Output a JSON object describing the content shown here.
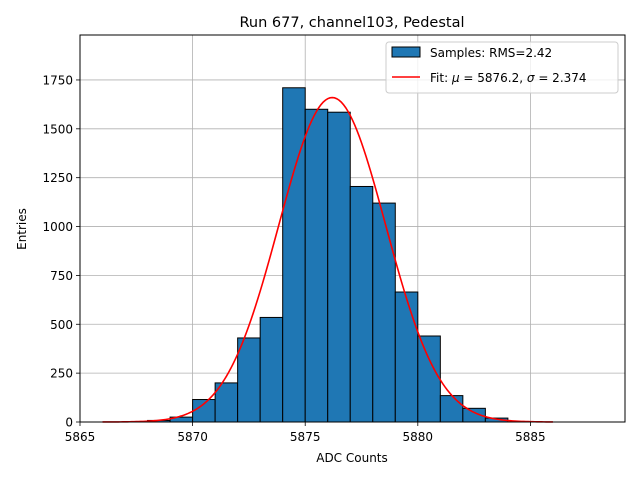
{
  "chart_data": {
    "type": "bar",
    "title": "Run 677, channel103, Pedestal",
    "xlabel": "ADC Counts",
    "ylabel": "Entries",
    "xlim": [
      5865,
      5889.2
    ],
    "ylim": [
      0,
      1980
    ],
    "xticks": [
      5865,
      5870,
      5875,
      5880,
      5885
    ],
    "yticks": [
      0,
      250,
      500,
      750,
      1000,
      1250,
      1500,
      1750
    ],
    "xtick_labels": [
      "5865",
      "5870",
      "5875",
      "5880",
      "5885"
    ],
    "ytick_labels": [
      "0",
      "250",
      "500",
      "750",
      "1000",
      "1250",
      "1500",
      "1750"
    ],
    "grid": true,
    "legend_position": "upper-right",
    "histogram": {
      "name": "Samples: RMS=2.42",
      "bin_edges": [
        5868,
        5869,
        5870,
        5871,
        5872,
        5873,
        5874,
        5875,
        5876,
        5877,
        5878,
        5879,
        5880,
        5881,
        5882,
        5883,
        5884
      ],
      "counts": [
        8,
        25,
        115,
        200,
        430,
        535,
        1710,
        1600,
        1585,
        1205,
        1120,
        665,
        440,
        135,
        70,
        20
      ],
      "color": "#1f77b4",
      "edge_color": "#000000"
    },
    "fit": {
      "name": "Fit: μ = 5876.2, σ = 2.374",
      "mu": 5876.2,
      "sigma": 2.374,
      "amplitude": 1660,
      "x_range": [
        5866,
        5886
      ],
      "color": "#ff0000"
    },
    "legend": {
      "samples_prefix": "Samples: ",
      "samples_value": "RMS=2.42",
      "fit_prefix": "Fit: ",
      "fit_mu_symbol": "μ",
      "fit_mu_text": " = 5876.2, ",
      "fit_sigma_symbol": "σ",
      "fit_sigma_text": " = 2.374"
    }
  }
}
